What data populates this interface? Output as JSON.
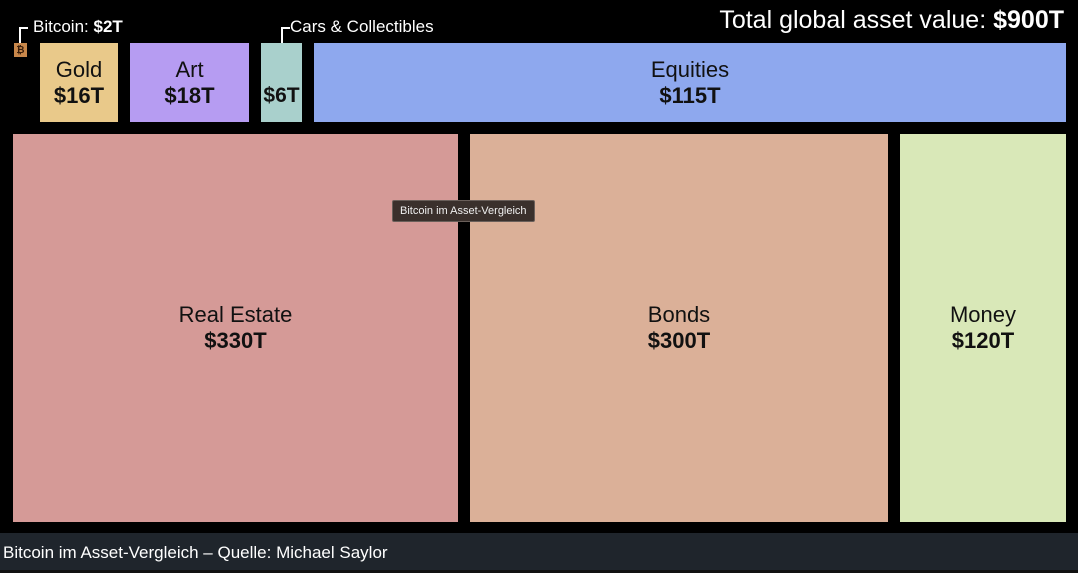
{
  "chart_data": {
    "type": "treemap",
    "title_prefix": "Total global asset value:",
    "title_value": "$900T",
    "assets": [
      {
        "id": "bitcoin",
        "name": "Bitcoin:",
        "label": "$2T",
        "value": 2,
        "color": "#c8874a"
      },
      {
        "id": "gold",
        "name": "Gold",
        "label": "$16T",
        "value": 16,
        "color": "#e9c98a"
      },
      {
        "id": "art",
        "name": "Art",
        "label": "$18T",
        "value": 18,
        "color": "#b69cf2"
      },
      {
        "id": "cars",
        "name": "Cars & Collectibles",
        "label": "$6T",
        "value": 6,
        "color": "#a9d0cc"
      },
      {
        "id": "equities",
        "name": "Equities",
        "label": "$115T",
        "value": 115,
        "color": "#8ea8ee"
      },
      {
        "id": "realestate",
        "name": "Real Estate",
        "label": "$330T",
        "value": 330,
        "color": "#d59a97"
      },
      {
        "id": "bonds",
        "name": "Bonds",
        "label": "$300T",
        "value": 300,
        "color": "#dbb098"
      },
      {
        "id": "money",
        "name": "Money",
        "label": "$120T",
        "value": 120,
        "color": "#d9e8b8"
      }
    ]
  },
  "tooltip": "Bitcoin im Asset-Vergleich",
  "caption": "Bitcoin im Asset-Vergleich – Quelle: Michael Saylor",
  "icons": {
    "bitcoin": "bitcoin-icon"
  },
  "bitcoin_glyph": "₿"
}
